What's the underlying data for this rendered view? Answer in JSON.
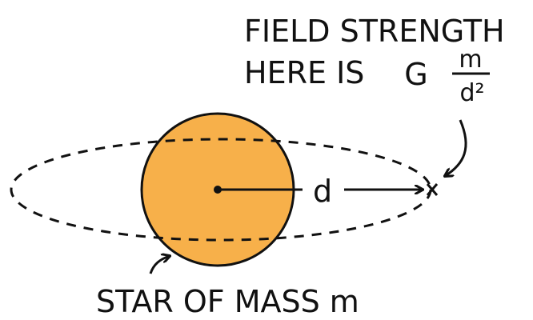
{
  "caption": {
    "line1": "FIELD STRENGTH",
    "line2": "HERE IS",
    "formula": {
      "constant": "G",
      "numerator": "m",
      "denominator": "d²"
    }
  },
  "distance_label": "d",
  "star_label": "STAR OF MASS m"
}
